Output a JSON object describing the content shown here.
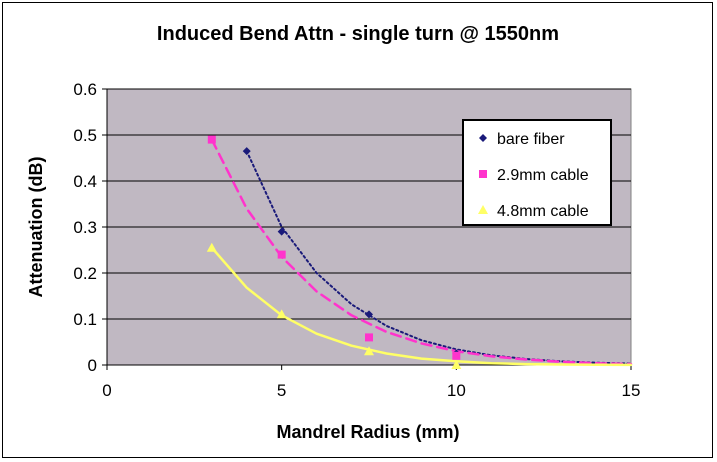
{
  "chart_data": {
    "type": "scatter",
    "title": "Induced Bend Attn - single turn @ 1550nm",
    "xlabel": "Mandrel Radius (mm)",
    "ylabel": "Attenuation (dB)",
    "xlim": [
      0,
      15
    ],
    "ylim": [
      0,
      0.6
    ],
    "xticks": [
      "0",
      "5",
      "10",
      "15"
    ],
    "yticks": [
      "0",
      "0.1",
      "0.2",
      "0.3",
      "0.4",
      "0.5",
      "0.6"
    ],
    "plot_background": "#c0b8c2",
    "grid": "horizontal",
    "legend_position": "top-right",
    "series": [
      {
        "name": "bare fiber",
        "color": "#1a1a7a",
        "marker": "diamond",
        "trendline": "dotted",
        "points": [
          [
            4,
            0.465
          ],
          [
            5,
            0.29
          ],
          [
            7.5,
            0.11
          ],
          [
            10,
            0.025
          ]
        ],
        "trend": [
          [
            4,
            0.465
          ],
          [
            5,
            0.3
          ],
          [
            6,
            0.2
          ],
          [
            7,
            0.132
          ],
          [
            8,
            0.085
          ],
          [
            9,
            0.054
          ],
          [
            10,
            0.034
          ],
          [
            11,
            0.021
          ],
          [
            12,
            0.013
          ],
          [
            13,
            0.008
          ],
          [
            14,
            0.005
          ],
          [
            15,
            0.003
          ]
        ]
      },
      {
        "name": "2.9mm cable",
        "color": "#ff33cc",
        "marker": "square",
        "trendline": "dashed",
        "points": [
          [
            3,
            0.49
          ],
          [
            5,
            0.24
          ],
          [
            7.5,
            0.06
          ],
          [
            10,
            0.02
          ]
        ],
        "trend": [
          [
            3,
            0.49
          ],
          [
            4,
            0.34
          ],
          [
            5,
            0.235
          ],
          [
            6,
            0.16
          ],
          [
            7,
            0.108
          ],
          [
            8,
            0.072
          ],
          [
            9,
            0.047
          ],
          [
            10,
            0.03
          ],
          [
            11,
            0.019
          ],
          [
            12,
            0.012
          ],
          [
            13,
            0.007
          ],
          [
            14,
            0.004
          ],
          [
            15,
            0.002
          ]
        ]
      },
      {
        "name": "4.8mm cable",
        "color": "#ffff66",
        "marker": "triangle",
        "trendline": "solid",
        "points": [
          [
            3,
            0.255
          ],
          [
            5,
            0.11
          ],
          [
            7.5,
            0.03
          ],
          [
            10,
            0.0
          ]
        ],
        "trend": [
          [
            3,
            0.255
          ],
          [
            4,
            0.168
          ],
          [
            5,
            0.108
          ],
          [
            6,
            0.068
          ],
          [
            7,
            0.042
          ],
          [
            8,
            0.025
          ],
          [
            9,
            0.014
          ],
          [
            10,
            0.008
          ],
          [
            11,
            0.004
          ],
          [
            12,
            0.002
          ],
          [
            13,
            0.001
          ],
          [
            14,
            0.0005
          ],
          [
            15,
            0.0002
          ]
        ]
      }
    ]
  }
}
